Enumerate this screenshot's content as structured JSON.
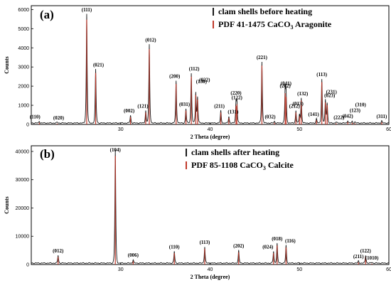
{
  "colors": {
    "trace": "#1a1a1a",
    "reference": "#c0392b"
  },
  "chart_data": [
    {
      "type": "line",
      "panel_label": "(a)",
      "xlabel": "2 Theta (degree)",
      "ylabel": "Counts",
      "xlim": [
        20,
        60
      ],
      "ylim": [
        0,
        6200
      ],
      "x_ticks": [
        30,
        40,
        50,
        60
      ],
      "y_ticks": [
        0,
        1000,
        2000,
        3000,
        4000,
        5000,
        6000
      ],
      "legend": [
        {
          "label_main": "clam shells before heating",
          "label_sub": "",
          "label_after": "",
          "color": "#1a1a1a"
        },
        {
          "label_main": "PDF 41-1475 CaCO",
          "label_sub": "3",
          "label_after": " Aragonite",
          "color": "#c0392b"
        }
      ],
      "peaks": [
        {
          "x": 20.9,
          "y": 90,
          "label": "(110)"
        },
        {
          "x": 22.9,
          "y": 40,
          "label": "(020)"
        },
        {
          "x": 26.2,
          "y": 5700,
          "label": "(111)"
        },
        {
          "x": 27.2,
          "y": 2800,
          "label": "(021)"
        },
        {
          "x": 31.1,
          "y": 400,
          "label": "(002)"
        },
        {
          "x": 32.8,
          "y": 650,
          "label": "(121)"
        },
        {
          "x": 33.2,
          "y": 4100,
          "label": "(012)"
        },
        {
          "x": 36.2,
          "y": 2200,
          "label": "(200)"
        },
        {
          "x": 37.3,
          "y": 750,
          "label": "(031)"
        },
        {
          "x": 37.9,
          "y": 2600,
          "label": "(112)"
        },
        {
          "x": 38.4,
          "y": 1600,
          "label": "(130)"
        },
        {
          "x": 38.6,
          "y": 1350,
          "label": "(022)"
        },
        {
          "x": 41.2,
          "y": 650,
          "label": "(211)"
        },
        {
          "x": 42.9,
          "y": 1000,
          "label": "(220)"
        },
        {
          "x": 42.1,
          "y": 350,
          "label": "(131)"
        },
        {
          "x": 43.0,
          "y": 1100,
          "label": "(122)"
        },
        {
          "x": 45.8,
          "y": 3200,
          "label": "(221)"
        },
        {
          "x": 47.2,
          "y": 90,
          "label": "(032)"
        },
        {
          "x": 48.4,
          "y": 1700,
          "label": "(202)"
        },
        {
          "x": 48.5,
          "y": 1500,
          "label": "(041)"
        },
        {
          "x": 50.2,
          "y": 1300,
          "label": "(132)"
        },
        {
          "x": 49.6,
          "y": 650,
          "label": "(212)"
        },
        {
          "x": 50.0,
          "y": 450,
          "label": "(013)"
        },
        {
          "x": 51.9,
          "y": 230,
          "label": "(141)"
        },
        {
          "x": 52.5,
          "y": 2300,
          "label": "(113)"
        },
        {
          "x": 52.9,
          "y": 1200,
          "label": "(023)"
        },
        {
          "x": 53.1,
          "y": 1050,
          "label": "(231)"
        },
        {
          "x": 54.1,
          "y": 60,
          "label": "(222)"
        },
        {
          "x": 55.4,
          "y": 130,
          "label": "(042)"
        },
        {
          "x": 55.9,
          "y": 90,
          "label": "(123)"
        },
        {
          "x": 56.2,
          "y": 60,
          "label": "(310)"
        },
        {
          "x": 59.2,
          "y": 120,
          "label": "(311)"
        }
      ]
    },
    {
      "type": "line",
      "panel_label": "(b)",
      "xlabel": "2 Theta (degree)",
      "ylabel": "Counts",
      "xlim": [
        20,
        60
      ],
      "ylim": [
        0,
        42000
      ],
      "x_ticks": [
        30,
        40,
        50,
        60
      ],
      "y_ticks": [
        0,
        10000,
        20000,
        30000,
        40000
      ],
      "legend": [
        {
          "label_main": "clam shells after heating",
          "label_sub": "",
          "label_after": "",
          "color": "#1a1a1a"
        },
        {
          "label_main": "PDF 85-1108 CaCO",
          "label_sub": "3",
          "label_after": " Calcite",
          "color": "#c0392b"
        }
      ],
      "peaks": [
        {
          "x": 23.0,
          "y": 2800,
          "label": "(012)"
        },
        {
          "x": 29.4,
          "y": 40000,
          "label": "(104)"
        },
        {
          "x": 31.4,
          "y": 1200,
          "label": "(006)"
        },
        {
          "x": 36.0,
          "y": 4200,
          "label": "(110)"
        },
        {
          "x": 39.4,
          "y": 5800,
          "label": "(113)"
        },
        {
          "x": 43.2,
          "y": 4500,
          "label": "(202)"
        },
        {
          "x": 47.1,
          "y": 4200,
          "label": "(024)"
        },
        {
          "x": 47.5,
          "y": 7000,
          "label": "(018)"
        },
        {
          "x": 48.5,
          "y": 6300,
          "label": "(116)"
        },
        {
          "x": 56.6,
          "y": 800,
          "label": "(211)"
        },
        {
          "x": 57.4,
          "y": 2800,
          "label": "(122)"
        },
        {
          "x": 58.1,
          "y": 300,
          "label": "(1010)"
        }
      ]
    }
  ]
}
